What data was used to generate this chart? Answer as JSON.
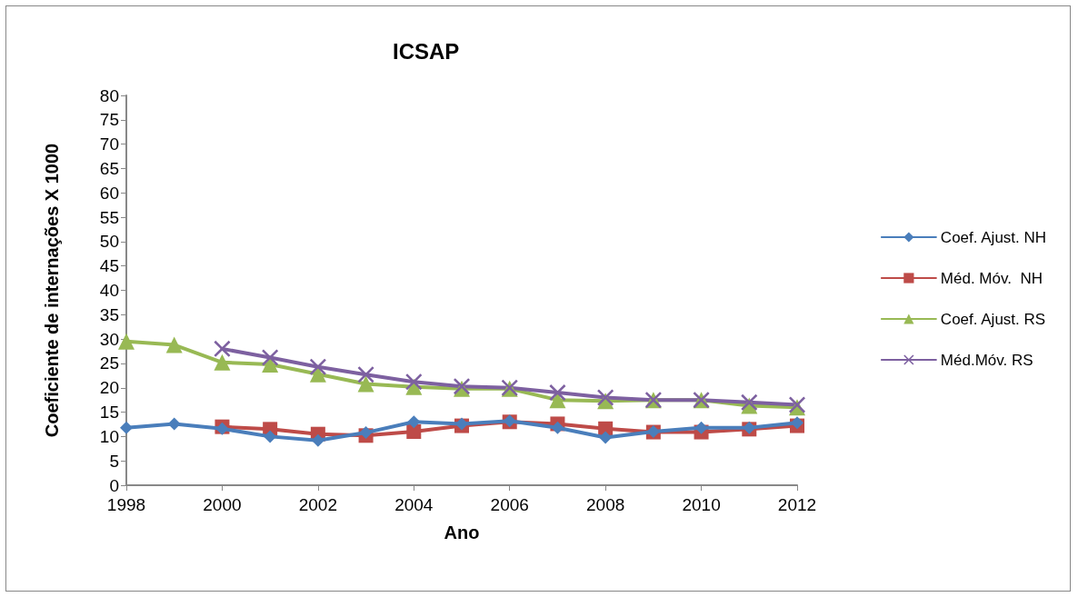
{
  "chart_data": {
    "type": "line",
    "title": "ICSAP",
    "xlabel": "Ano",
    "ylabel": "Coeficiente de internações X 1000",
    "x": [
      1998,
      1999,
      2000,
      2001,
      2002,
      2003,
      2004,
      2005,
      2006,
      2007,
      2008,
      2009,
      2010,
      2011,
      2012
    ],
    "xlim": [
      1998,
      2012
    ],
    "xticks": [
      1998,
      2000,
      2002,
      2004,
      2006,
      2008,
      2010,
      2012
    ],
    "ylim": [
      0,
      80
    ],
    "yticks": [
      0,
      5,
      10,
      15,
      20,
      25,
      30,
      35,
      40,
      45,
      50,
      55,
      60,
      65,
      70,
      75,
      80
    ],
    "grid": false,
    "legend": "right",
    "series": [
      {
        "name": "Coef. Ajust. NH",
        "color": "#4a7ebb",
        "marker": "diamond",
        "values": [
          11.8,
          12.6,
          11.6,
          10,
          9.2,
          10.8,
          13,
          12.6,
          13.2,
          11.8,
          9.8,
          11,
          11.8,
          11.8,
          12.8
        ]
      },
      {
        "name": "Méd. Móv.  NH",
        "color": "#be4b48",
        "marker": "square",
        "values": [
          null,
          null,
          12,
          11.5,
          10.5,
          10.2,
          11,
          12.2,
          13,
          12.6,
          11.6,
          10.9,
          10.9,
          11.5,
          12.2
        ]
      },
      {
        "name": "Coef. Ajust. RS",
        "color": "#98b954",
        "marker": "triangle",
        "values": [
          29.5,
          28.8,
          25.2,
          24.8,
          22.8,
          20.8,
          20.2,
          19.8,
          19.8,
          17.5,
          17.3,
          17.5,
          17.5,
          16.3,
          16
        ]
      },
      {
        "name": "Méd.Móv. RS",
        "color": "#7d60a0",
        "marker": "cross",
        "values": [
          null,
          null,
          28,
          26.2,
          24.3,
          22.7,
          21.2,
          20.3,
          20,
          19,
          18,
          17.5,
          17.5,
          17,
          16.5
        ]
      }
    ]
  }
}
